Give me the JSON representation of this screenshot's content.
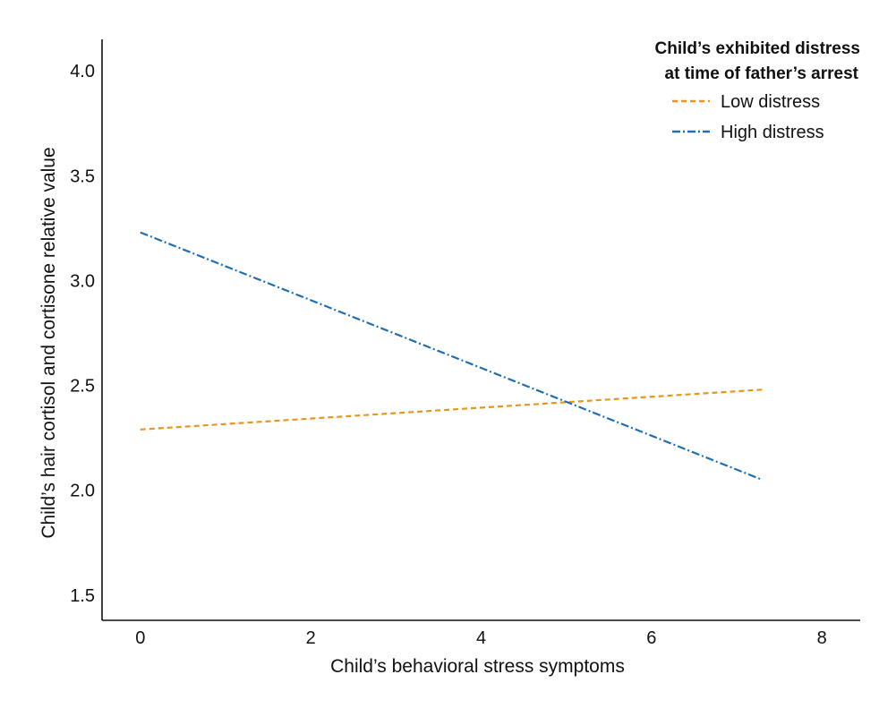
{
  "chart_data": {
    "type": "line",
    "xlabel": "Child’s behavioral stress symptoms",
    "ylabel": "Child’s hair cortisol and cortisone relative value",
    "xlim": [
      -0.45,
      8.45
    ],
    "ylim": [
      1.38,
      4.15
    ],
    "x_ticks": [
      "0",
      "2",
      "4",
      "6",
      "8"
    ],
    "y_ticks": [
      "1.5",
      "2.0",
      "2.5",
      "3.0",
      "3.5",
      "4.0"
    ],
    "grid": false,
    "legend": {
      "position": "top-right",
      "title_lines": [
        "Child’s exhibited distress",
        "at time of father’s arrest"
      ]
    },
    "series": [
      {
        "name": "Low distress",
        "color": "#E8961E",
        "dash": "short-dash",
        "x": [
          0,
          7.3
        ],
        "y": [
          2.29,
          2.48
        ]
      },
      {
        "name": "High distress",
        "color": "#1F6FB4",
        "dash": "dash-dot",
        "x": [
          0,
          7.3
        ],
        "y": [
          3.23,
          2.05
        ]
      }
    ]
  }
}
